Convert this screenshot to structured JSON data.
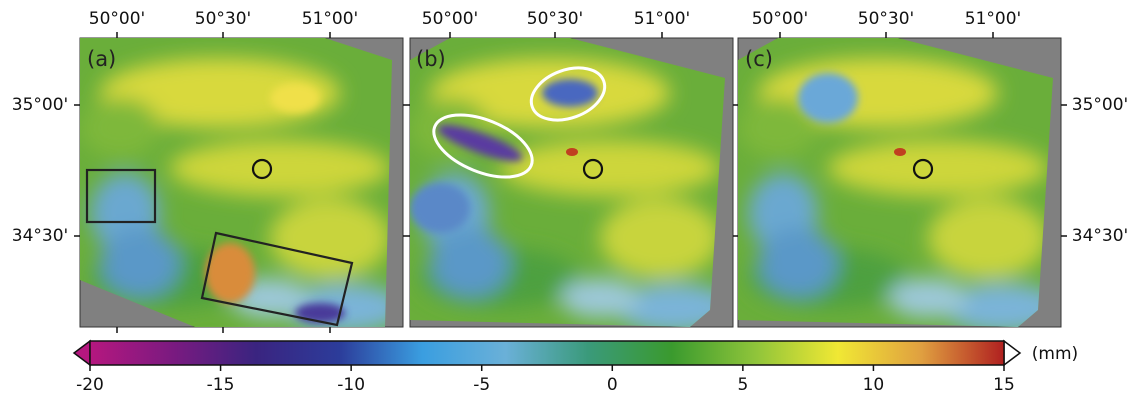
{
  "panels": [
    {
      "label": "(a)",
      "lon_labels": [
        "50°00'",
        "50°30'",
        "51°00'"
      ]
    },
    {
      "label": "(b)",
      "lon_labels": [
        "50°00'",
        "50°30'",
        "51°00'"
      ]
    },
    {
      "label": "(c)",
      "lon_labels": [
        "50°00'",
        "50°30'",
        "51°00'"
      ]
    }
  ],
  "lat_labels_left": [
    "35°00'",
    "34°30'"
  ],
  "lat_labels_right": [
    "35°00'",
    "34°30'"
  ],
  "colorbar": {
    "lim": [
      -20,
      15
    ],
    "ticks": [
      -20,
      -15,
      -10,
      -5,
      0,
      5,
      10,
      15
    ],
    "unit": "(mm)",
    "colors": [
      "#b5177f",
      "#7a1a80",
      "#3a2480",
      "#2c3c9a",
      "#3a9ee0",
      "#6ab0d8",
      "#3a9a7a",
      "#3a9a2e",
      "#8ec43a",
      "#f0e834",
      "#e0a040",
      "#b02020"
    ]
  }
}
